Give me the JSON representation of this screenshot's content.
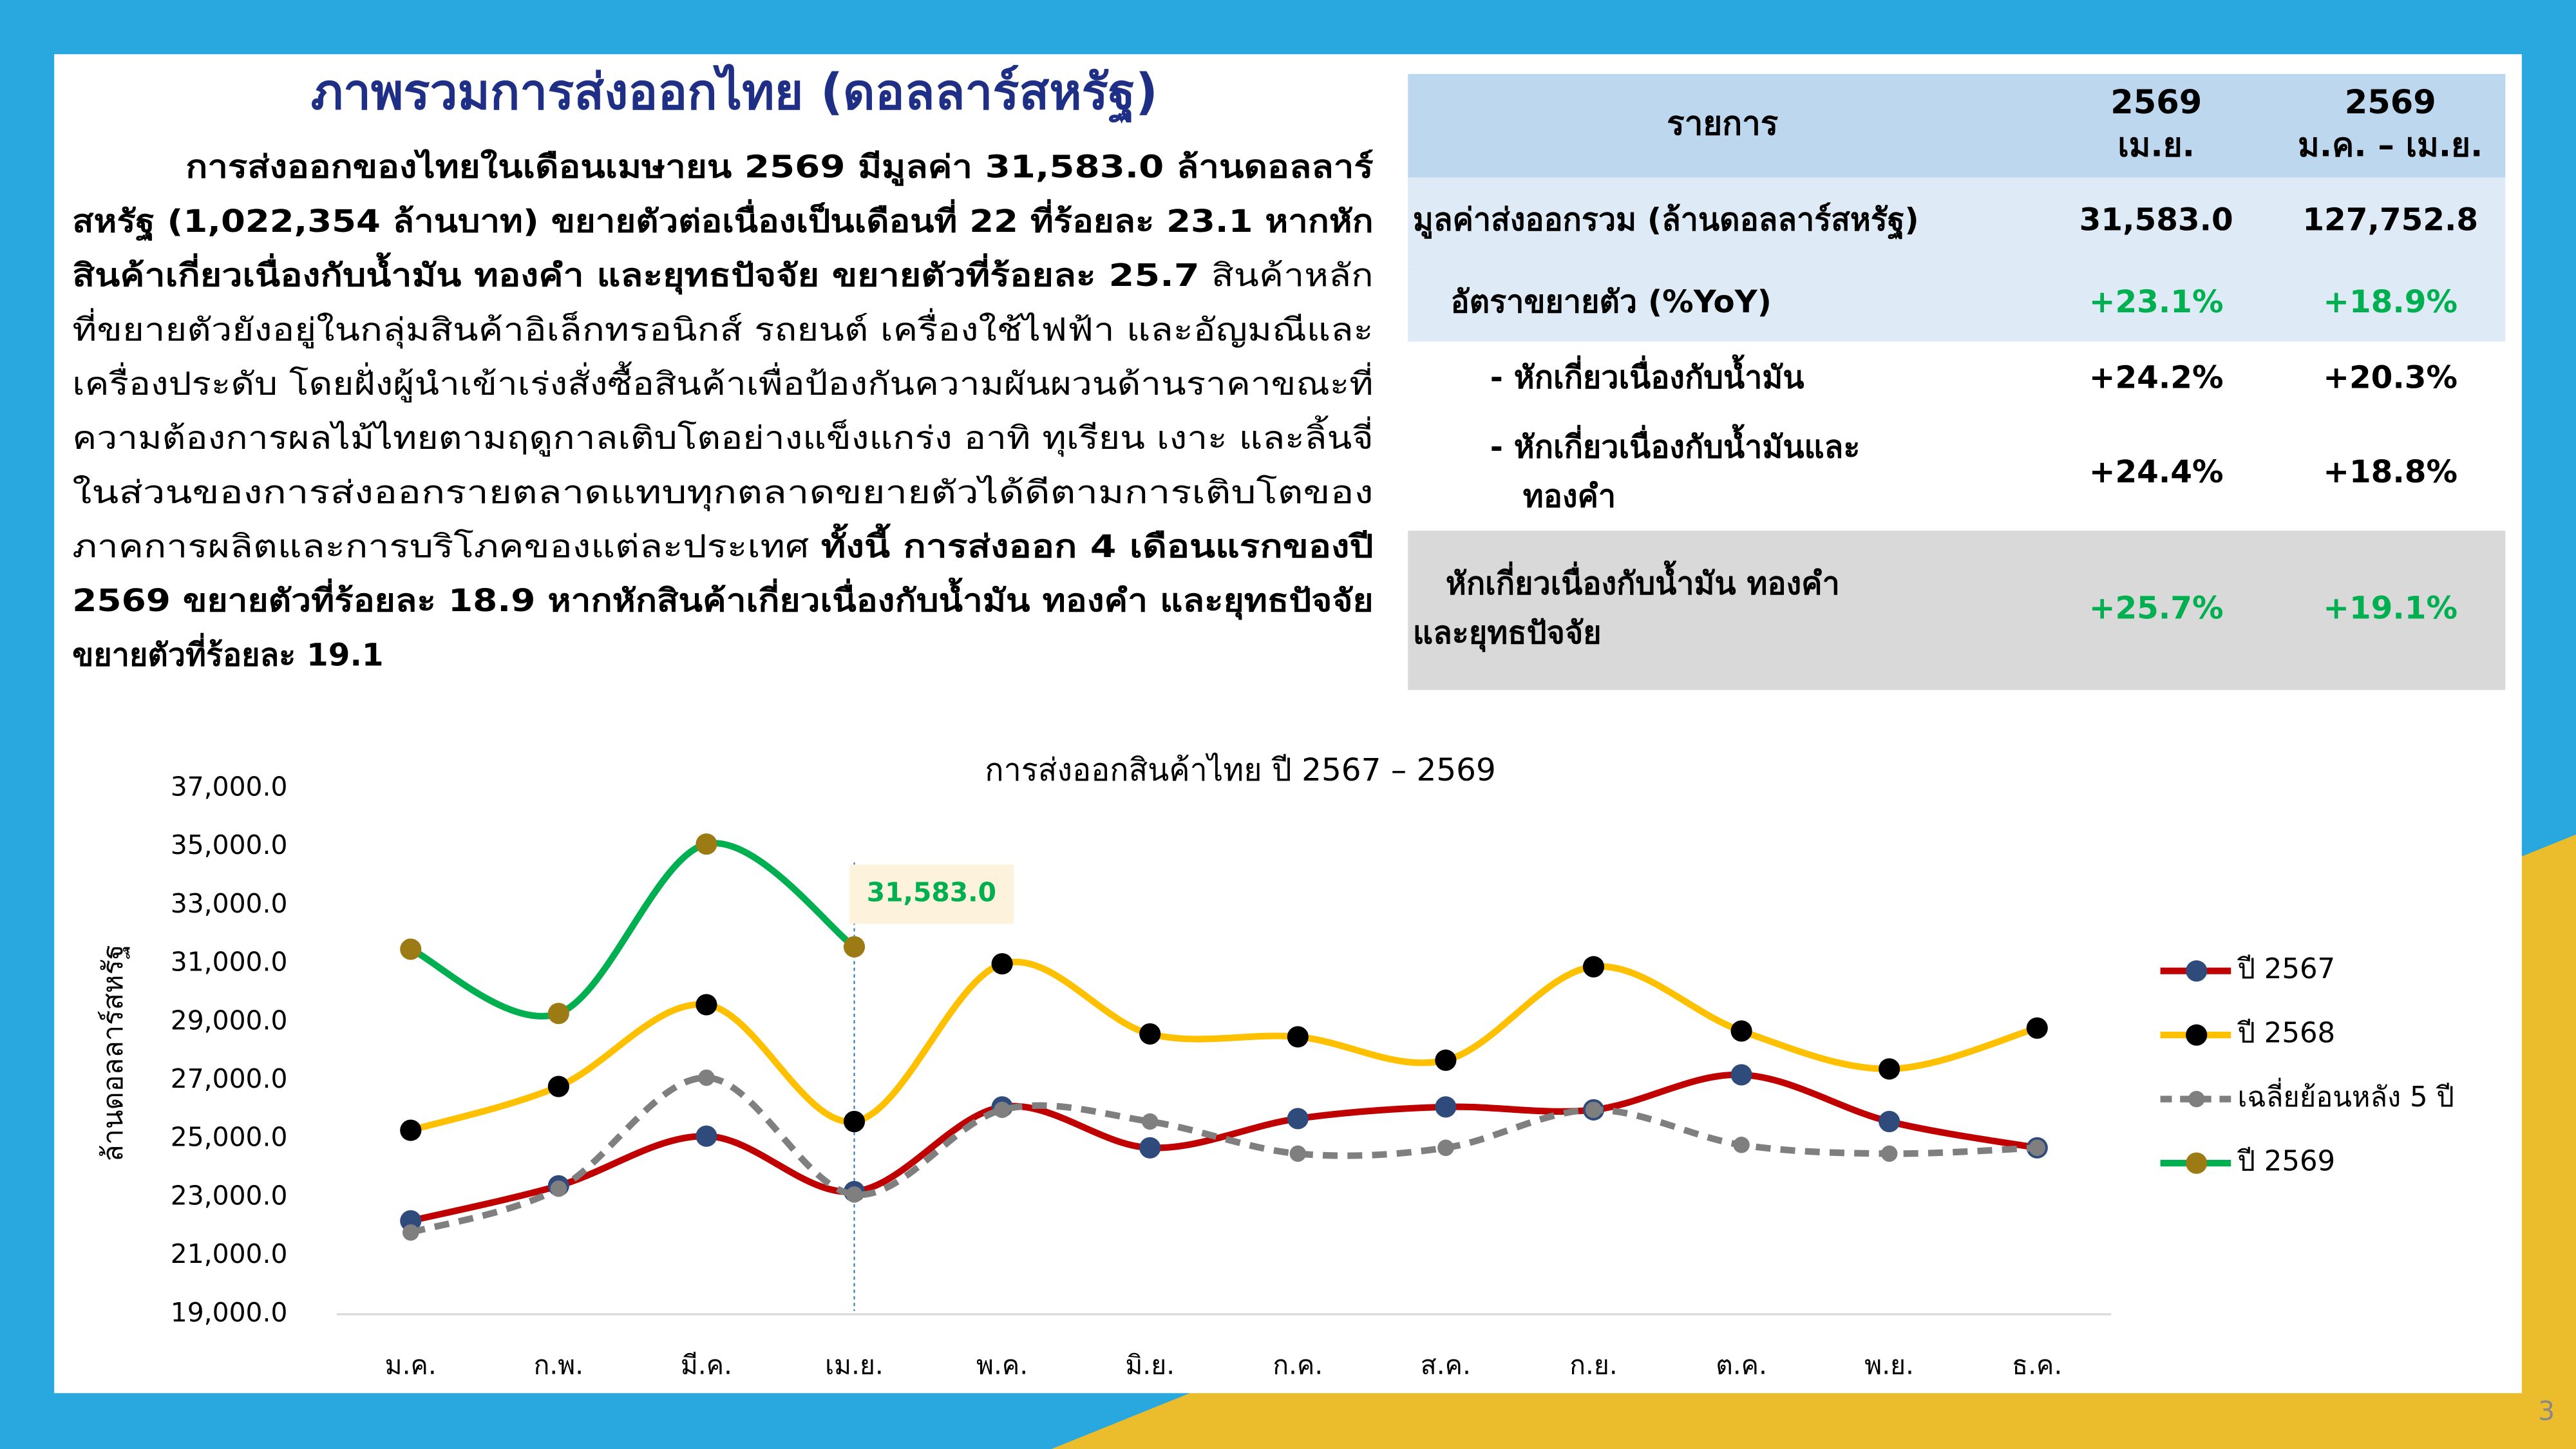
{
  "header": {
    "title": "ภาพรวมการส่งออกไทย (ดอลลาร์สหรัฐ)"
  },
  "paragraph": [
    [
      {
        "text": "การส่งออกของไทยในเดือนเมษายน 2569 มีมูลค่า 31,583.0 ล้านดอลลาร์",
        "bold": true
      }
    ],
    [
      {
        "text": "สหรัฐ (1,022,354 ล้านบาท) ขยายตัวต่อเนื่องเป็นเดือนที่ 22 ที่ร้อยละ 23.1 หากหัก",
        "bold": true
      }
    ],
    [
      {
        "text": "สินค้าเกี่ยวเนื่องกับน้ำมัน ทองคำ และยุทธปัจจัย ขยายตัวที่ร้อยละ 25.7",
        "bold": true
      },
      {
        "text": " สินค้าหลัก",
        "bold": false
      }
    ],
    [
      {
        "text": "ที่ขยายตัวยังอยู่ในกลุ่มสินค้าอิเล็กทรอนิกส์ รถยนต์ เครื่องใช้ไฟฟ้า และอัญมณีและ",
        "bold": false
      }
    ],
    [
      {
        "text": "เครื่องประดับ โดยฝั่งผู้นำเข้าเร่งสั่งซื้อสินค้าเพื่อป้องกันความผันผวนด้านราคาขณะที่",
        "bold": false
      }
    ],
    [
      {
        "text": "ความต้องการผลไม้ไทยตามฤดูกาลเติบโตอย่างแข็งแกร่ง อาทิ ทุเรียน เงาะ และลิ้นจี่",
        "bold": false
      }
    ],
    [
      {
        "text": "ในส่วนของการส่งออกรายตลาดแทบทุกตลาดขยายตัวได้ดีตามการเติบโตของ",
        "bold": false
      }
    ],
    [
      {
        "text": "ภาคการผลิตและการบริโภคของแต่ละประเทศ ",
        "bold": false
      },
      {
        "text": "ทั้งนี้ การส่งออก 4 เดือนแรกของปี",
        "bold": true
      }
    ],
    [
      {
        "text": "2569 ขยายตัวที่ร้อยละ 18.9 หากหักสินค้าเกี่ยวเนื่องกับน้ำมัน ทองคำ และยุทธปัจจัย",
        "bold": true
      }
    ],
    [
      {
        "text": "ขยายตัวที่ร้อยละ 19.1",
        "bold": true
      }
    ]
  ],
  "table": {
    "header": [
      [
        "รายการ"
      ],
      [
        "2569",
        "เม.ย."
      ],
      [
        "2569",
        "ม.ค. – เม.ย."
      ]
    ],
    "rows": [
      {
        "label": [
          "มูลค่าส่งออกรวม (ล้านดอลลาร์สหรัฐ)"
        ],
        "values": [
          "31,583.0",
          "127,752.8"
        ],
        "value_color": "#000000"
      },
      {
        "label": [
          "อัตราขยายตัว (%YoY)"
        ],
        "values": [
          "+23.1%",
          "+18.9%"
        ],
        "value_color": "#00b050"
      },
      {
        "label": [
          "- หักเกี่ยวเนื่องกับน้ำมัน"
        ],
        "values": [
          "+24.2%",
          "+20.3%"
        ],
        "value_color": "#000000"
      },
      {
        "label": [
          "- หักเกี่ยวเนื่องกับน้ำมันและ",
          "ทองคำ"
        ],
        "values": [
          "+24.4%",
          "+18.8%"
        ],
        "value_color": "#000000"
      },
      {
        "label": [
          "หักเกี่ยวเนื่องกับน้ำมัน ทองคำ",
          "และยุทธปัจจัย"
        ],
        "values": [
          "+25.7%",
          "+19.1%"
        ],
        "value_color": "#00b050"
      }
    ]
  },
  "chart_data": {
    "type": "line",
    "title": "การส่งออกสินค้าไทย ปี 2567 – 2569",
    "y_label": "ล้านดอลลาร์สหรัฐ",
    "categories": [
      "ม.ค.",
      "ก.พ.",
      "มี.ค.",
      "เม.ย.",
      "พ.ค.",
      "มิ.ย.",
      "ก.ค.",
      "ส.ค.",
      "ก.ย.",
      "ต.ค.",
      "พ.ย.",
      "ธ.ค."
    ],
    "ylim": [
      19000,
      37000
    ],
    "yticks": [
      {
        "value": 19000,
        "label": "19,000.0"
      },
      {
        "value": 21000,
        "label": "21,000.0"
      },
      {
        "value": 23000,
        "label": "23,000.0"
      },
      {
        "value": 25000,
        "label": "25,000.0"
      },
      {
        "value": 27000,
        "label": "27,000.0"
      },
      {
        "value": 29000,
        "label": "29,000.0"
      },
      {
        "value": 31000,
        "label": "31,000.0"
      },
      {
        "value": 33000,
        "label": "33,000.0"
      },
      {
        "value": 35000,
        "label": "35,000.0"
      },
      {
        "value": 37000,
        "label": "37,000.0"
      }
    ],
    "series": [
      {
        "name": "ปี 2567",
        "color": "#c00000",
        "marker_color": "#2f4b7c",
        "values": [
          22200,
          23400,
          25100,
          23200,
          26100,
          24700,
          25700,
          26100,
          26000,
          27200,
          25600,
          24700
        ]
      },
      {
        "name": "ปี 2568",
        "color": "#ffc000",
        "marker_color": "#000000",
        "values": [
          25300,
          26800,
          29600,
          25600,
          31000,
          28600,
          28500,
          27700,
          30900,
          28700,
          27400,
          28800
        ]
      },
      {
        "name": "เฉลี่ยย้อนหลัง 5 ปี",
        "color": "#7f7f7f",
        "marker_color": "#7f7f7f",
        "dashed": true,
        "values": [
          21800,
          23300,
          27100,
          23100,
          26000,
          25600,
          24500,
          24700,
          26000,
          24800,
          24500,
          24700
        ]
      },
      {
        "name": "ปี 2569",
        "color": "#00b050",
        "marker_color": "#9c7a14",
        "values": [
          31500,
          29300,
          35100,
          31583,
          null,
          null,
          null,
          null,
          null,
          null,
          null,
          null
        ],
        "value_labels": [
          null,
          null,
          null,
          "31,583.0",
          null,
          null,
          null,
          null,
          null,
          null,
          null,
          null
        ]
      }
    ]
  },
  "footer": {
    "page": "3"
  }
}
